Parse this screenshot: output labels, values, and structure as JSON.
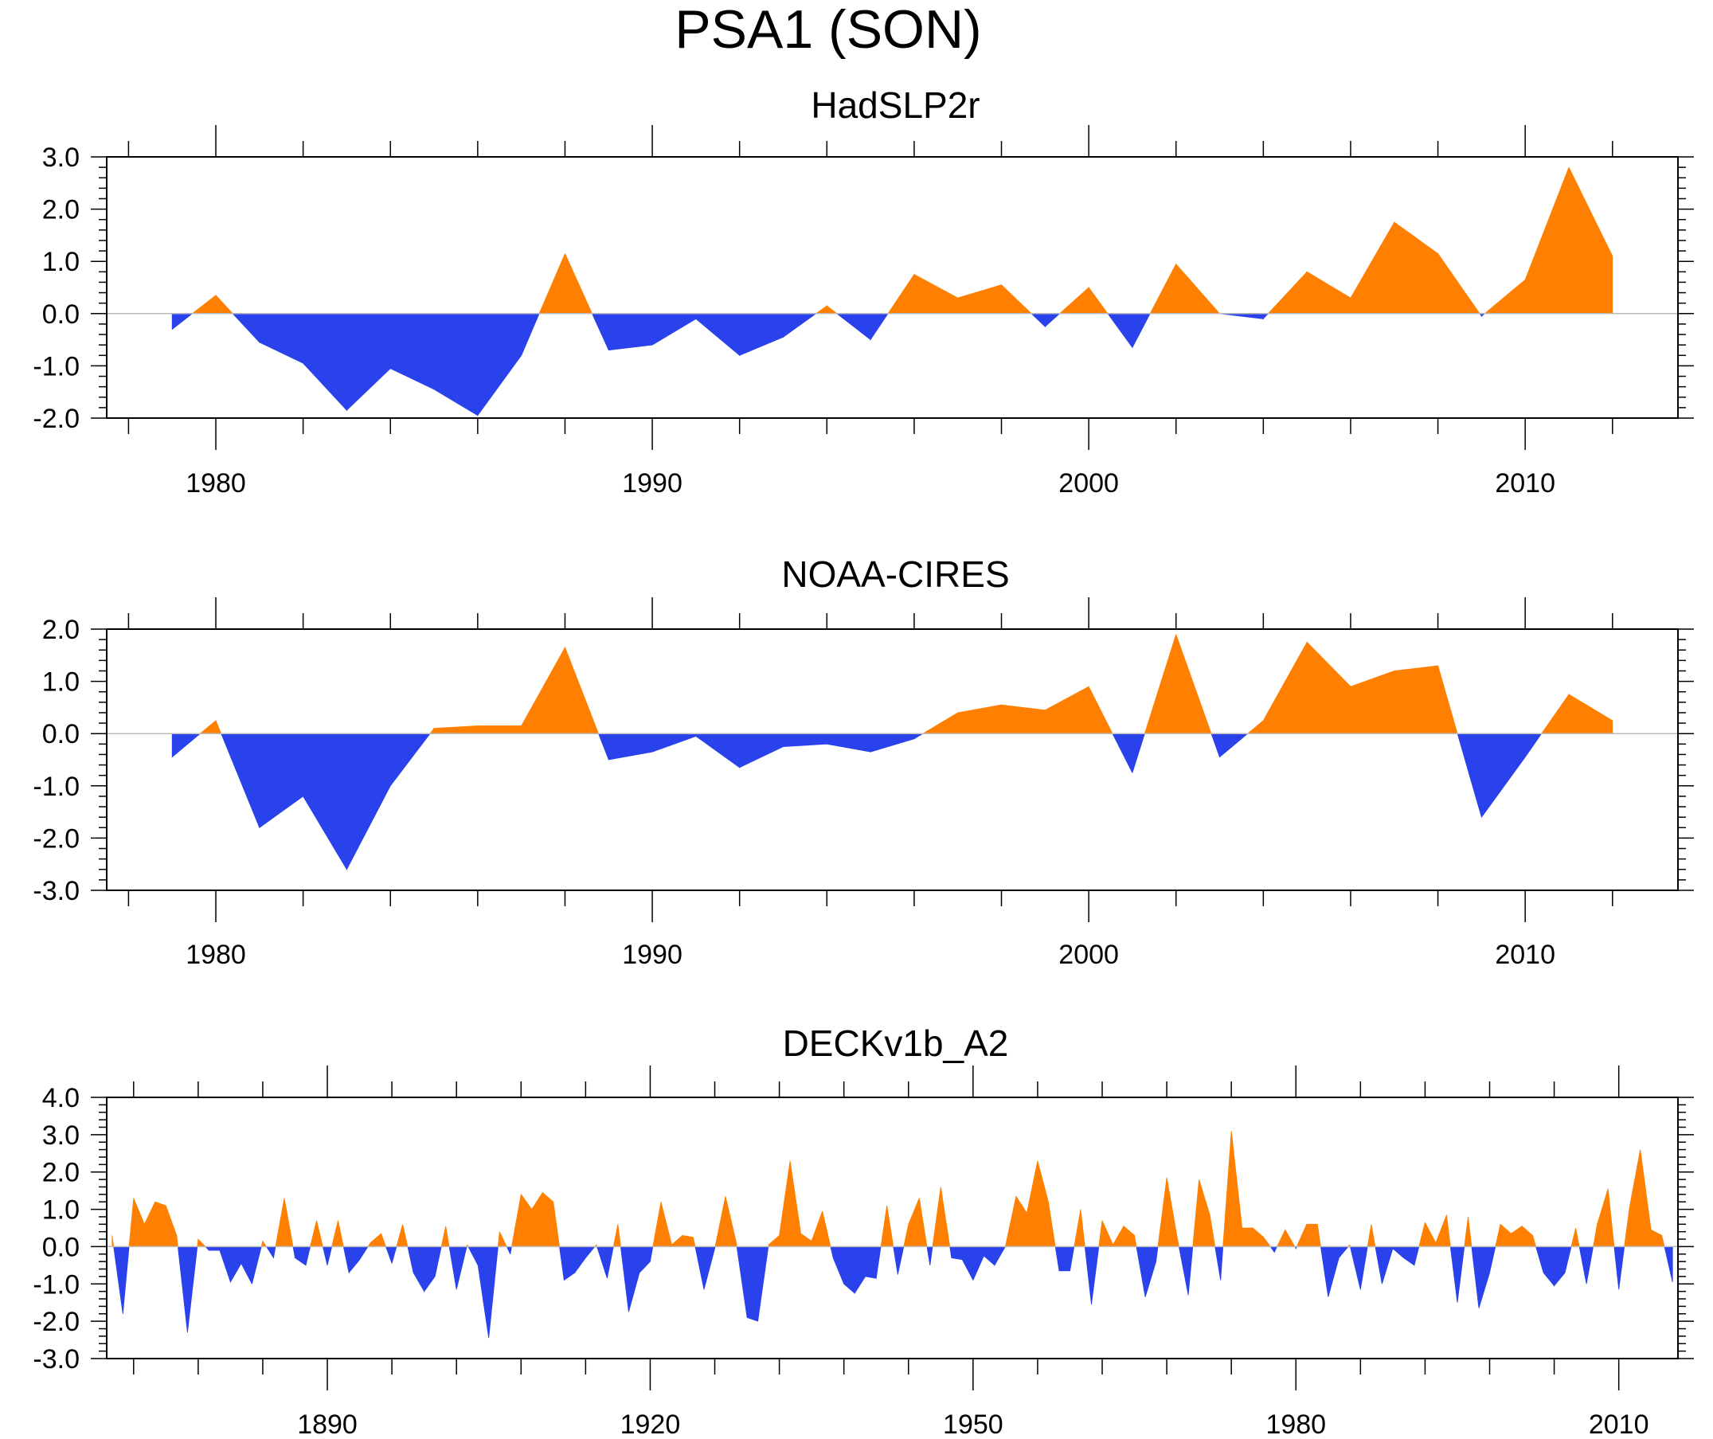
{
  "figure": {
    "title": "PSA1 (SON)"
  },
  "colors": {
    "positive": "#ff8000",
    "negative": "#2a42ec",
    "axis": "#000000",
    "zero_line": "#bbbbbb"
  },
  "chart_data": [
    {
      "type": "area",
      "title": "HadSLP2r",
      "xlabel": "",
      "ylabel": "",
      "xlim": [
        1977.5,
        2013.5
      ],
      "ylim": [
        -2.0,
        3.0
      ],
      "yticks": [
        3.0,
        2.0,
        1.0,
        0.0,
        -1.0,
        -2.0
      ],
      "ytick_labels": [
        "3.0",
        "2.0",
        "1.0",
        "0.0",
        "-1.0",
        "-2.0"
      ],
      "xticks": [
        1980,
        1990,
        2000,
        2010
      ],
      "xtick_labels": [
        "1980",
        "1990",
        "2000",
        "2010"
      ],
      "x_start": 1979,
      "values": [
        -0.3,
        0.35,
        -0.55,
        -0.95,
        -1.85,
        -1.05,
        -1.45,
        -1.95,
        -0.8,
        1.15,
        -0.7,
        -0.6,
        -0.1,
        -0.8,
        -0.45,
        0.15,
        -0.5,
        0.75,
        0.3,
        0.55,
        -0.25,
        0.5,
        -0.65,
        0.95,
        0.0,
        -0.1,
        0.8,
        0.3,
        1.75,
        1.15,
        -0.05,
        0.65,
        2.8,
        1.1
      ]
    },
    {
      "type": "area",
      "title": "NOAA-CIRES",
      "xlabel": "",
      "ylabel": "",
      "xlim": [
        1977.5,
        2013.5
      ],
      "ylim": [
        -3.0,
        2.0
      ],
      "yticks": [
        2.0,
        1.0,
        0.0,
        -1.0,
        -2.0,
        -3.0
      ],
      "ytick_labels": [
        "2.0",
        "1.0",
        "0.0",
        "-1.0",
        "-2.0",
        "-3.0"
      ],
      "xticks": [
        1980,
        1990,
        2000,
        2010
      ],
      "xtick_labels": [
        "1980",
        "1990",
        "2000",
        "2010"
      ],
      "x_start": 1979,
      "values": [
        -0.45,
        0.25,
        -1.8,
        -1.2,
        -2.6,
        -1.0,
        0.1,
        0.15,
        0.15,
        1.65,
        -0.5,
        -0.35,
        -0.05,
        -0.65,
        -0.25,
        -0.2,
        -0.35,
        -0.1,
        0.4,
        0.55,
        0.45,
        0.9,
        -0.75,
        1.9,
        -0.45,
        0.25,
        1.75,
        0.9,
        1.2,
        1.3,
        -1.6,
        -0.45,
        0.75,
        0.25
      ]
    },
    {
      "type": "area",
      "title": "DECKv1b_A2",
      "xlabel": "",
      "ylabel": "",
      "xlim": [
        1869.5,
        2015.5
      ],
      "ylim": [
        -3.0,
        4.0
      ],
      "yticks": [
        4.0,
        3.0,
        2.0,
        1.0,
        0.0,
        -1.0,
        -2.0,
        -3.0
      ],
      "ytick_labels": [
        "4.0",
        "3.0",
        "2.0",
        "1.0",
        "0.0",
        "-1.0",
        "-2.0",
        "-3.0"
      ],
      "xticks": [
        1890,
        1920,
        1950,
        1980,
        2010
      ],
      "xtick_labels": [
        "1890",
        "1920",
        "1950",
        "1980",
        "2010"
      ],
      "x_start": 1870,
      "values": [
        0.3,
        -1.8,
        1.3,
        0.6,
        1.2,
        1.1,
        0.3,
        -2.3,
        0.2,
        -0.1,
        -0.1,
        -0.95,
        -0.45,
        -1.0,
        0.15,
        -0.3,
        1.3,
        -0.3,
        -0.5,
        0.7,
        -0.5,
        0.7,
        -0.7,
        -0.35,
        0.1,
        0.35,
        -0.45,
        0.6,
        -0.7,
        -1.2,
        -0.8,
        0.55,
        -1.15,
        0.05,
        -0.5,
        -2.45,
        0.4,
        -0.2,
        1.4,
        1.0,
        1.45,
        1.2,
        -0.9,
        -0.7,
        -0.3,
        0.05,
        -0.85,
        0.6,
        -1.75,
        -0.7,
        -0.4,
        1.2,
        0.05,
        0.3,
        0.25,
        -1.15,
        -0.05,
        1.35,
        0.1,
        -1.9,
        -2.0,
        0.05,
        0.3,
        2.3,
        0.35,
        0.15,
        0.95,
        -0.3,
        -1.0,
        -1.25,
        -0.8,
        -0.85,
        1.1,
        -0.75,
        0.6,
        1.3,
        -0.5,
        1.6,
        -0.3,
        -0.35,
        -0.9,
        -0.25,
        -0.5,
        0.0,
        1.35,
        0.9,
        2.3,
        1.2,
        -0.65,
        -0.65,
        1.0,
        -1.55,
        0.7,
        0.05,
        0.55,
        0.3,
        -1.35,
        -0.4,
        1.85,
        0.2,
        -1.3,
        1.8,
        0.85,
        -0.9,
        3.1,
        0.5,
        0.5,
        0.25,
        -0.15,
        0.45,
        -0.05,
        0.6,
        0.6,
        -1.35,
        -0.3,
        0.05,
        -1.15,
        0.6,
        -1.0,
        -0.05,
        -0.3,
        -0.5,
        0.65,
        0.1,
        0.85,
        -1.5,
        0.8,
        -1.65,
        -0.7,
        0.6,
        0.35,
        0.55,
        0.3,
        -0.7,
        -1.05,
        -0.7,
        0.5,
        -1.0,
        0.6,
        1.55,
        -1.15,
        1.05,
        2.6,
        0.45,
        0.3,
        -0.95
      ]
    }
  ]
}
